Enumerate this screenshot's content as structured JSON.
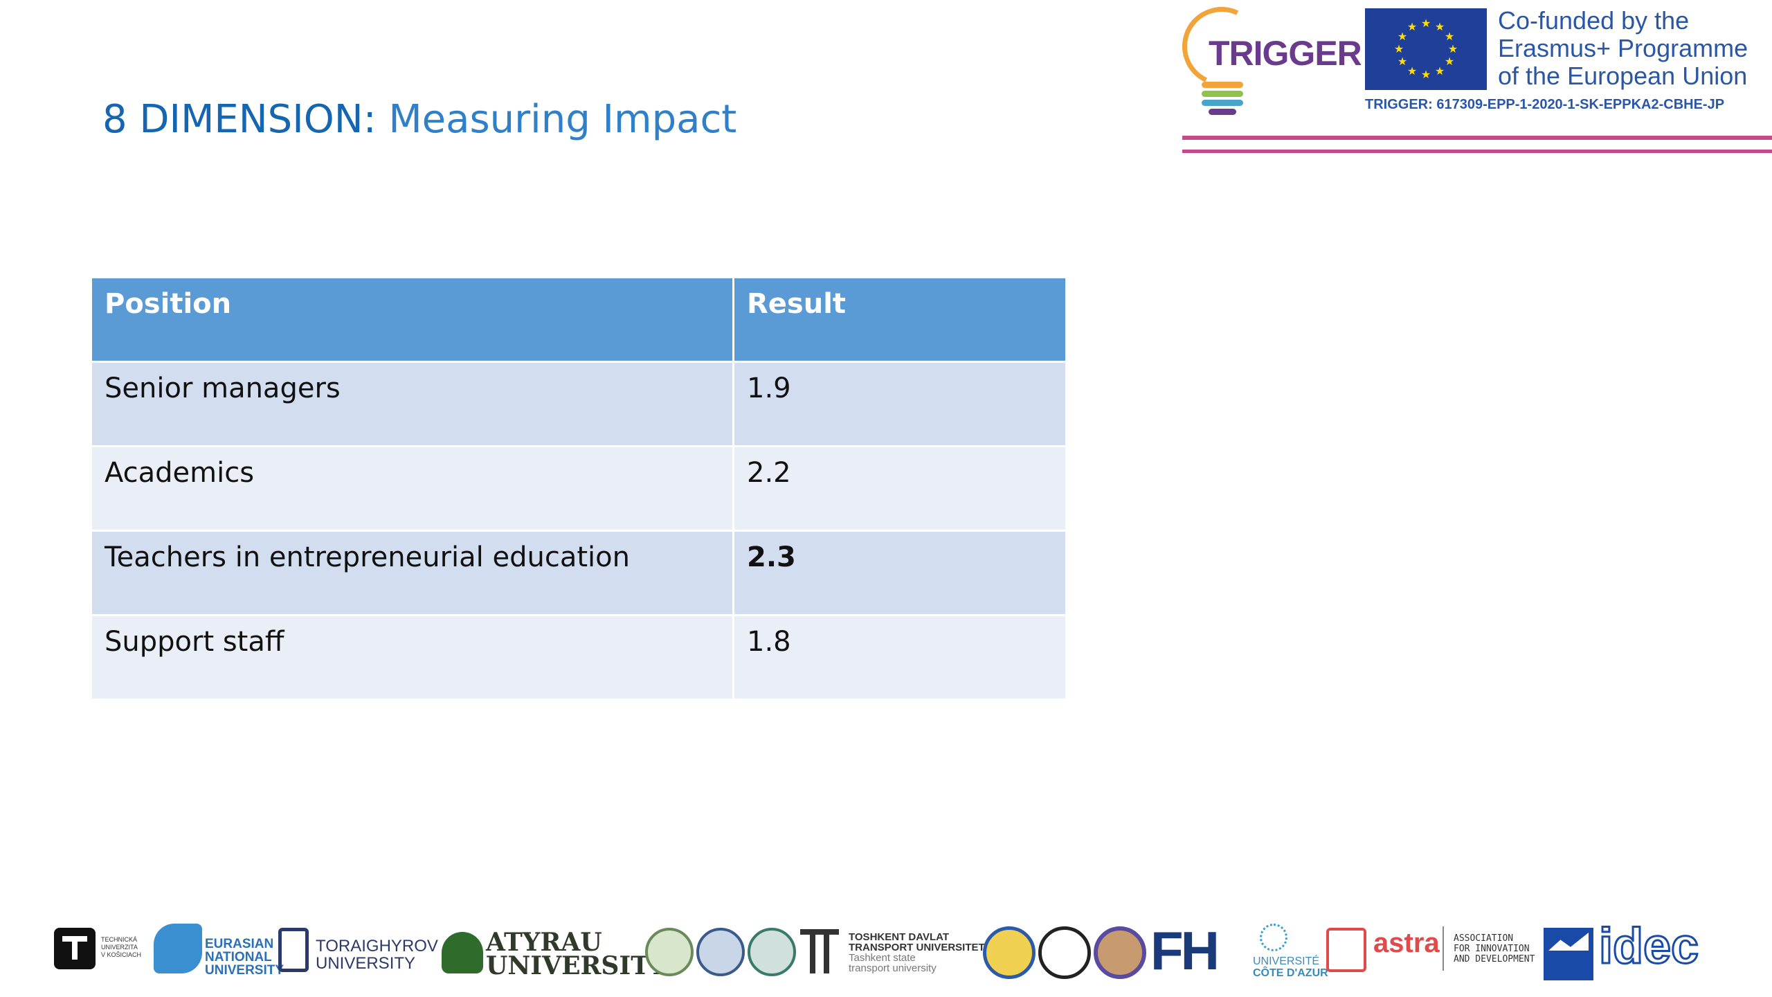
{
  "title": {
    "prefix": "8 DIMENSION:",
    "rest": " Measuring Impact"
  },
  "header": {
    "trigger_logo_text": "TRIGGER",
    "eu_lines": [
      "Co-funded by the",
      "Erasmus+ Programme",
      "of the European Union"
    ],
    "project_code": "TRIGGER: 617309-EPP-1-2020-1-SK-EPPKA2-CBHE-JP"
  },
  "table": {
    "headers": [
      "Position",
      "Result"
    ],
    "rows": [
      {
        "position": "Senior managers",
        "result": "1.9"
      },
      {
        "position": "Academics",
        "result": "2.2"
      },
      {
        "position": "Teachers in entrepreneurial education",
        "result": "2.3"
      },
      {
        "position": "Support staff",
        "result": "1.8"
      }
    ]
  },
  "footer": {
    "tuke_text": [
      "TECHNICKÁ",
      "UNIVERZITA",
      "V KOŠICIACH"
    ],
    "eurasian": [
      "EURASIAN",
      "NATIONAL",
      "UNIVERSITY"
    ],
    "toraighyrov": [
      "TORAIGHYROV",
      "UNIVERSITY"
    ],
    "atyrau": [
      "ATYRAU",
      "UNIVERSITY"
    ],
    "tashkent": [
      "TOSHKENT DAVLAT",
      "TRANSPORT UNIVERSITETI",
      "Tashkent state",
      "transport university"
    ],
    "fh": "FH",
    "cote": [
      "UNIVERSITÉ",
      "CÔTE D'AZUR"
    ],
    "astra": "astra",
    "association": [
      "ASSOCIATION",
      "FOR INNOVATION",
      "AND DEVELOPMENT"
    ],
    "idec": "idec"
  },
  "colors": {
    "title": "#1f6fb5",
    "table_header": "#5b9bd5",
    "row_odd": "#d2def0",
    "row_even": "#eaeff7",
    "rule": "#c44a8a"
  }
}
